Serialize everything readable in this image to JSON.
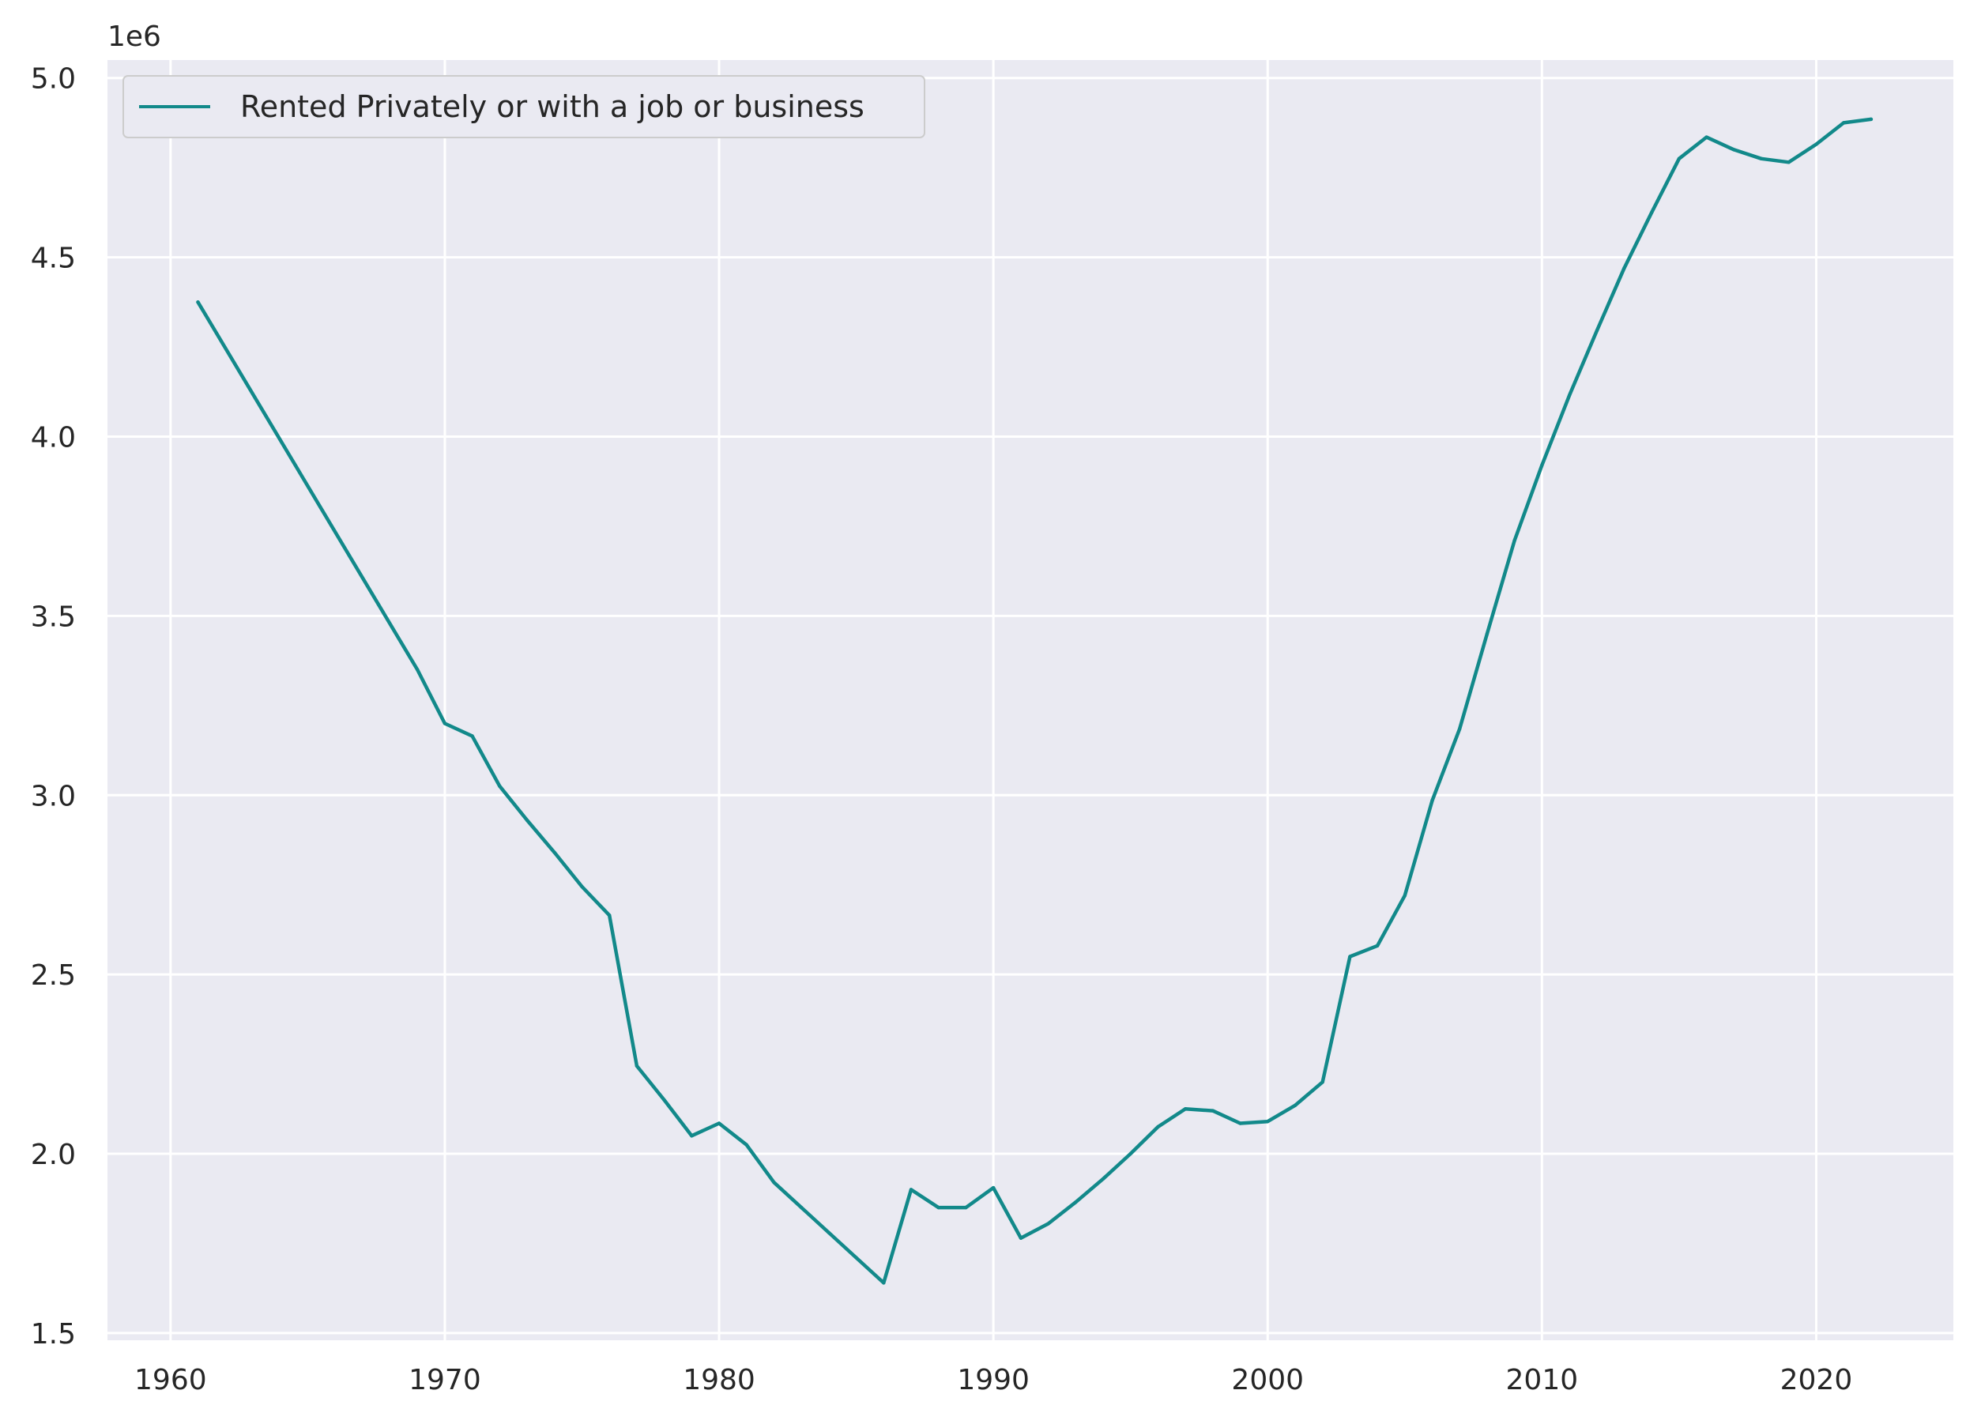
{
  "chart_data": {
    "type": "line",
    "title": "",
    "xlabel": "",
    "ylabel": "",
    "offset_label": "1e6",
    "xlim": [
      1957.7,
      2025.0
    ],
    "ylim": [
      1.48,
      5.05
    ],
    "xticks": [
      1960,
      1970,
      1980,
      1990,
      2000,
      2010,
      2020
    ],
    "yticks": [
      1.5,
      2.0,
      2.5,
      3.0,
      3.5,
      4.0,
      4.5,
      5.0
    ],
    "ytick_labels": [
      "1.5",
      "2.0",
      "2.5",
      "3.0",
      "3.5",
      "4.0",
      "4.5",
      "5.0"
    ],
    "grid": true,
    "legend_position": "upper left",
    "colors": {
      "line": "#12898a",
      "plot_bg": "#eaeaf2",
      "grid": "#ffffff"
    },
    "series": [
      {
        "name": "Rented Privately or with a job or business",
        "x": [
          1961,
          1969,
          1970,
          1971,
          1972,
          1973,
          1974,
          1975,
          1976,
          1977,
          1978,
          1979,
          1980,
          1981,
          1982,
          1983,
          1984,
          1985,
          1986,
          1987,
          1988,
          1989,
          1990,
          1991,
          1992,
          1993,
          1994,
          1995,
          1996,
          1997,
          1998,
          1999,
          2000,
          2001,
          2002,
          2003,
          2004,
          2005,
          2006,
          2007,
          2008,
          2009,
          2010,
          2011,
          2012,
          2013,
          2014,
          2015,
          2016,
          2017,
          2018,
          2019,
          2020,
          2021,
          2022
        ],
        "y": [
          4.375,
          3.35,
          3.2,
          3.165,
          3.025,
          2.93,
          2.84,
          2.745,
          2.665,
          2.245,
          2.15,
          2.05,
          2.085,
          2.025,
          1.92,
          1.85,
          1.78,
          1.71,
          1.64,
          1.9,
          1.85,
          1.85,
          1.905,
          1.765,
          1.805,
          1.865,
          1.93,
          2.0,
          2.075,
          2.125,
          2.12,
          2.085,
          2.09,
          2.135,
          2.2,
          2.55,
          2.58,
          2.72,
          2.985,
          3.185,
          3.45,
          3.71,
          3.92,
          4.115,
          4.295,
          4.47,
          4.625,
          4.775,
          4.835,
          4.8,
          4.775,
          4.765,
          4.815,
          4.875,
          4.885
        ]
      }
    ]
  }
}
